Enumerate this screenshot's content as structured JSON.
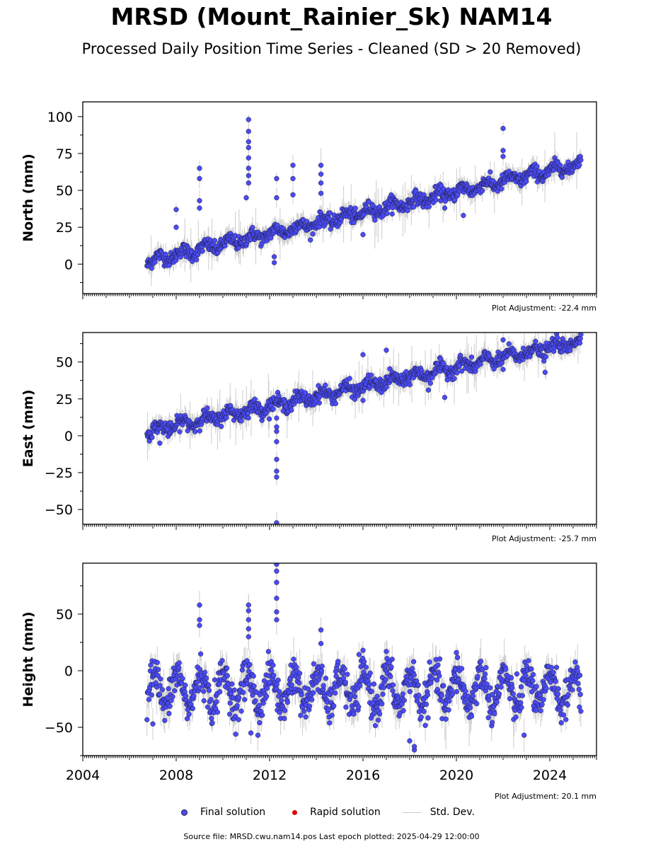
{
  "title": "MRSD (Mount_Rainier_Sk) NAM14",
  "subtitle": "Processed Daily Position Time Series - Cleaned (SD > 20 Removed)",
  "legend": {
    "final": "Final solution",
    "rapid": "Rapid solution",
    "stddev": "Std. Dev."
  },
  "source_text": "Source file: MRSD.cwu.nam14.pos  Last epoch plotted: 2025-04-29 12:00:00",
  "colors": {
    "final": "#4b4bf5",
    "final_edge": "#1a1a3a",
    "rapid": "#e00000",
    "stddev": "#cccccc"
  },
  "chart_data": [
    {
      "type": "scatter",
      "panel": "north",
      "ylabel": "North (mm)",
      "adjustment": "Plot Adjustment: -22.4 mm",
      "xlim": [
        2004.0,
        2026.0
      ],
      "ylim": [
        -20,
        110
      ],
      "yticks": [
        0,
        25,
        50,
        75,
        100
      ],
      "trend": {
        "start_year": 2006.75,
        "start_value": 2,
        "end_year": 2025.33,
        "end_value": 68
      },
      "outliers": [
        {
          "x": 2008.0,
          "y": 37
        },
        {
          "x": 2008.0,
          "y": 25
        },
        {
          "x": 2009.0,
          "y": 65
        },
        {
          "x": 2009.0,
          "y": 58
        },
        {
          "x": 2009.0,
          "y": 43
        },
        {
          "x": 2009.0,
          "y": 38
        },
        {
          "x": 2011.1,
          "y": 98
        },
        {
          "x": 2011.1,
          "y": 90
        },
        {
          "x": 2011.1,
          "y": 83
        },
        {
          "x": 2011.1,
          "y": 79
        },
        {
          "x": 2011.1,
          "y": 72
        },
        {
          "x": 2011.1,
          "y": 65
        },
        {
          "x": 2011.1,
          "y": 60
        },
        {
          "x": 2011.1,
          "y": 55
        },
        {
          "x": 2011.0,
          "y": 45
        },
        {
          "x": 2012.3,
          "y": 58
        },
        {
          "x": 2012.3,
          "y": 45
        },
        {
          "x": 2012.2,
          "y": 5
        },
        {
          "x": 2012.2,
          "y": 1
        },
        {
          "x": 2013.0,
          "y": 67
        },
        {
          "x": 2013.0,
          "y": 58
        },
        {
          "x": 2013.0,
          "y": 47
        },
        {
          "x": 2014.2,
          "y": 67
        },
        {
          "x": 2014.2,
          "y": 61
        },
        {
          "x": 2014.2,
          "y": 55
        },
        {
          "x": 2014.2,
          "y": 48
        },
        {
          "x": 2016.0,
          "y": 20
        },
        {
          "x": 2019.5,
          "y": 38
        },
        {
          "x": 2020.3,
          "y": 33
        },
        {
          "x": 2022.0,
          "y": 92
        },
        {
          "x": 2022.0,
          "y": 77
        },
        {
          "x": 2022.0,
          "y": 73
        }
      ]
    },
    {
      "type": "scatter",
      "panel": "east",
      "ylabel": "East (mm)",
      "adjustment": "Plot Adjustment: -25.7 mm",
      "xlim": [
        2004.0,
        2026.0
      ],
      "ylim": [
        -60,
        70
      ],
      "yticks": [
        -50,
        -25,
        0,
        25,
        50
      ],
      "trend": {
        "start_year": 2006.75,
        "start_value": 3,
        "end_year": 2025.33,
        "end_value": 64
      },
      "outliers": [
        {
          "x": 2007.3,
          "y": -5
        },
        {
          "x": 2012.3,
          "y": 12
        },
        {
          "x": 2012.3,
          "y": 6
        },
        {
          "x": 2012.3,
          "y": 3
        },
        {
          "x": 2012.3,
          "y": -4
        },
        {
          "x": 2012.3,
          "y": -16
        },
        {
          "x": 2012.3,
          "y": -24
        },
        {
          "x": 2012.3,
          "y": -28
        },
        {
          "x": 2012.3,
          "y": -59
        },
        {
          "x": 2016.0,
          "y": 55
        },
        {
          "x": 2016.0,
          "y": 24
        },
        {
          "x": 2017.0,
          "y": 58
        },
        {
          "x": 2018.8,
          "y": 31
        },
        {
          "x": 2019.5,
          "y": 26
        },
        {
          "x": 2022.0,
          "y": 65
        },
        {
          "x": 2022.0,
          "y": 45
        },
        {
          "x": 2023.8,
          "y": 43
        }
      ]
    },
    {
      "type": "scatter",
      "panel": "height",
      "ylabel": "Height (mm)",
      "adjustment": "Plot Adjustment: 20.1 mm",
      "xlim": [
        2004.0,
        2026.0
      ],
      "ylim": [
        -75,
        95
      ],
      "yticks": [
        -50,
        0,
        50
      ],
      "seasonal": {
        "mean": -17,
        "amplitude": 15,
        "noise": 10
      },
      "outliers": [
        {
          "x": 2009.0,
          "y": 58
        },
        {
          "x": 2009.0,
          "y": 45
        },
        {
          "x": 2009.0,
          "y": 40
        },
        {
          "x": 2011.1,
          "y": 58
        },
        {
          "x": 2011.1,
          "y": 53
        },
        {
          "x": 2011.1,
          "y": 45
        },
        {
          "x": 2011.1,
          "y": 37
        },
        {
          "x": 2011.1,
          "y": 30
        },
        {
          "x": 2012.3,
          "y": 94
        },
        {
          "x": 2012.3,
          "y": 88
        },
        {
          "x": 2012.3,
          "y": 78
        },
        {
          "x": 2012.3,
          "y": 64
        },
        {
          "x": 2012.3,
          "y": 52
        },
        {
          "x": 2012.3,
          "y": 45
        },
        {
          "x": 2014.2,
          "y": 36
        },
        {
          "x": 2014.2,
          "y": 24
        },
        {
          "x": 2016.0,
          "y": 18
        },
        {
          "x": 2017.0,
          "y": 17
        },
        {
          "x": 2020.0,
          "y": 16
        },
        {
          "x": 2007.0,
          "y": -47
        },
        {
          "x": 2011.2,
          "y": -55
        },
        {
          "x": 2011.5,
          "y": -57
        },
        {
          "x": 2018.0,
          "y": -62
        },
        {
          "x": 2018.2,
          "y": -70
        },
        {
          "x": 2018.2,
          "y": -67
        },
        {
          "x": 2022.9,
          "y": -57
        }
      ]
    }
  ],
  "x_ticks": [
    2004,
    2008,
    2012,
    2016,
    2020,
    2024
  ],
  "x_tick_labels": [
    "2004",
    "2008",
    "2012",
    "2016",
    "2020",
    "2024"
  ],
  "data_span": {
    "first_epoch": 2006.75,
    "last_epoch": 2025.33
  }
}
